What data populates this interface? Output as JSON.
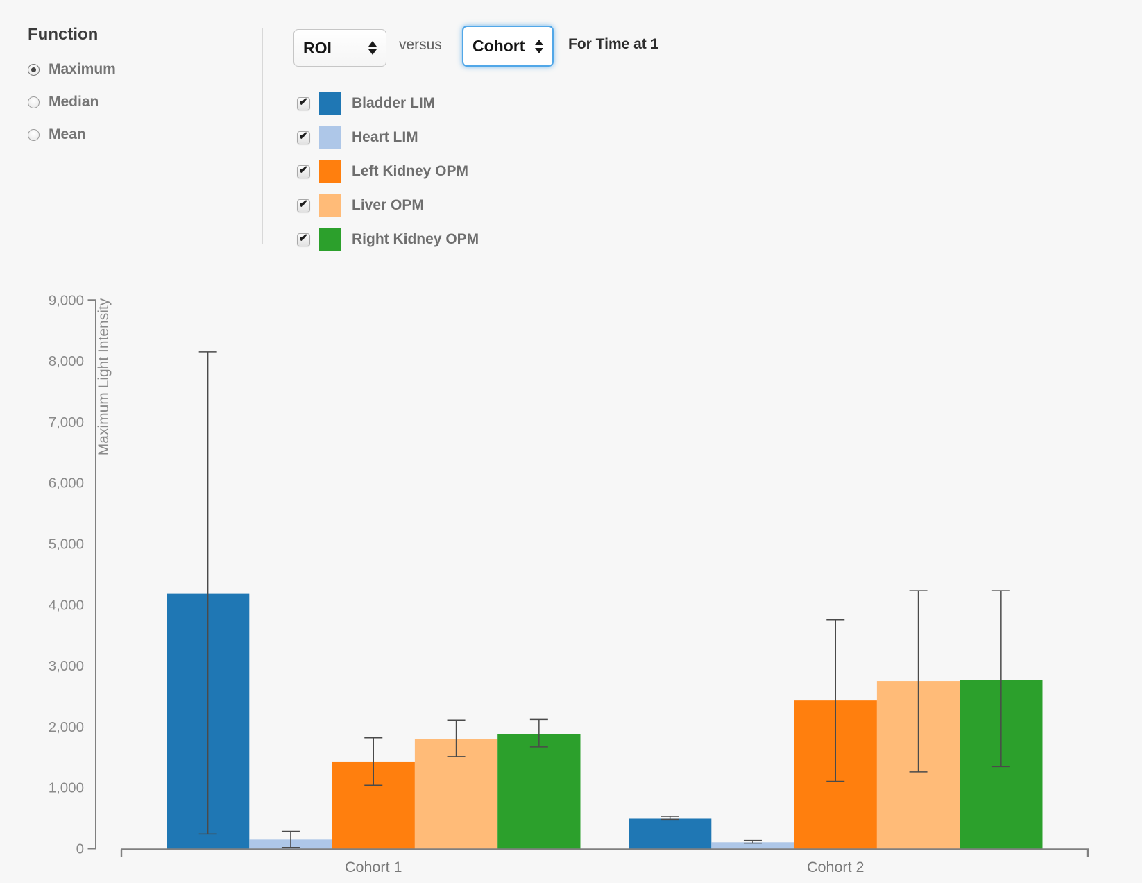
{
  "function_panel": {
    "title": "Function",
    "options": [
      {
        "label": "Maximum",
        "selected": true
      },
      {
        "label": "Median",
        "selected": false
      },
      {
        "label": "Mean",
        "selected": false
      }
    ]
  },
  "controls": {
    "x_axis_select": "ROI",
    "versus_label": "versus",
    "group_select": "Cohort",
    "time_label": "For Time at 1"
  },
  "legend": {
    "items": [
      {
        "label": "Bladder LIM",
        "color": "#1f77b4",
        "checked": true
      },
      {
        "label": "Heart LIM",
        "color": "#aec7e8",
        "checked": true
      },
      {
        "label": "Left Kidney OPM",
        "color": "#ff7f0e",
        "checked": true
      },
      {
        "label": "Liver OPM",
        "color": "#ffbb78",
        "checked": true
      },
      {
        "label": "Right Kidney OPM",
        "color": "#2ca02c",
        "checked": true
      }
    ]
  },
  "chart_data": {
    "type": "bar",
    "title": "",
    "xlabel": "",
    "ylabel": "Maximum Light Intensity",
    "categories": [
      "Cohort 1",
      "Cohort 2"
    ],
    "ylim": [
      0,
      9000
    ],
    "y_tick_step": 1000,
    "y_tick_labels": [
      "0",
      "1,000",
      "2,000",
      "3,000",
      "4,000",
      "5,000",
      "6,000",
      "7,000",
      "8,000",
      "9,000"
    ],
    "grid": false,
    "legend_position": "top",
    "error_bars": true,
    "series": [
      {
        "name": "Bladder LIM",
        "color": "#1f77b4",
        "values": [
          4190,
          490
        ],
        "error_low": [
          240,
          480
        ],
        "error_high": [
          8150,
          530
        ]
      },
      {
        "name": "Heart LIM",
        "color": "#aec7e8",
        "values": [
          150,
          105
        ],
        "error_low": [
          20,
          90
        ],
        "error_high": [
          285,
          135
        ]
      },
      {
        "name": "Left Kidney OPM",
        "color": "#ff7f0e",
        "values": [
          1430,
          2430
        ],
        "error_low": [
          1040,
          1105
        ],
        "error_high": [
          1820,
          3755
        ]
      },
      {
        "name": "Liver OPM",
        "color": "#ffbb78",
        "values": [
          1800,
          2750
        ],
        "error_low": [
          1510,
          1260
        ],
        "error_high": [
          2110,
          4230
        ]
      },
      {
        "name": "Right Kidney OPM",
        "color": "#2ca02c",
        "values": [
          1880,
          2770
        ],
        "error_low": [
          1670,
          1345
        ],
        "error_high": [
          2120,
          4230
        ]
      }
    ]
  },
  "colors": {
    "background": "#f7f7f7",
    "axis": "#808080",
    "tick_text": "#8a8a8a",
    "category_text": "#787878",
    "error_bar": "#4a4a4a",
    "focus_ring": "#51a7e8"
  }
}
